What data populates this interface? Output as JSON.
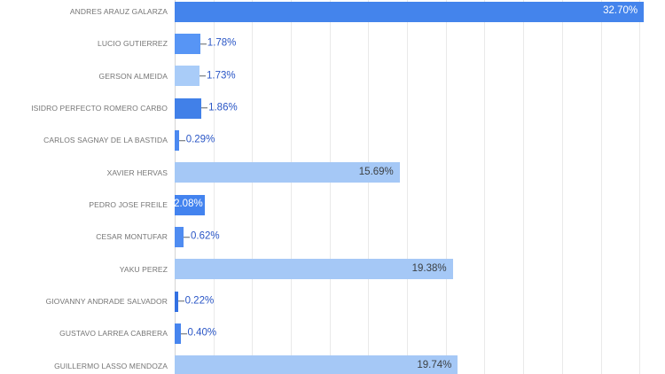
{
  "chart_data": {
    "type": "bar",
    "orientation": "horizontal",
    "title": "",
    "xlabel": "",
    "ylabel": "",
    "legend": "none",
    "grid": true,
    "categories": [
      "ANDRES ARAUZ GALARZA",
      "LUCIO GUTIERREZ",
      "GERSON ALMEIDA",
      "ISIDRO PERFECTO ROMERO CARBO",
      "CARLOS SAGNAY DE LA BASTIDA",
      "XAVIER HERVAS",
      "PEDRO JOSE FREILE",
      "CESAR MONTUFAR",
      "YAKU PEREZ",
      "GIOVANNY ANDRADE SALVADOR",
      "GUSTAVO LARREA CABRERA",
      "GUILLERMO LASSO MENDOZA"
    ],
    "values": [
      32.7,
      1.78,
      1.73,
      1.86,
      0.29,
      15.69,
      2.08,
      0.62,
      19.38,
      0.22,
      0.4,
      19.74
    ],
    "value_labels": [
      "32.70%",
      "1.78%",
      "1.73%",
      "1.86%",
      "0.29%",
      "15.69%",
      "2.08%",
      "0.62%",
      "19.38%",
      "0.22%",
      "0.40%",
      "19.74%"
    ],
    "bar_colors": [
      "#4484ec",
      "#5795f5",
      "#a9ccf8",
      "#4180e8",
      "#4b89f0",
      "#a5c8f6",
      "#4383ef",
      "#4f8cf1",
      "#a5c8f6",
      "#3371e2",
      "#4785ee",
      "#a5c8f6"
    ],
    "label_positions": [
      "inside",
      "outside",
      "outside",
      "outside",
      "outside",
      "inside",
      "inside",
      "outside",
      "inside",
      "outside",
      "outside",
      "inside"
    ],
    "inside_label_colors": [
      "#ffffff",
      null,
      null,
      null,
      null,
      "#3c4043",
      "#ffffff",
      null,
      "#3c4043",
      null,
      null,
      "#3c4043"
    ],
    "axis": {
      "min": 0,
      "max": 34.18,
      "gridline_step": 2.7
    }
  },
  "style": {
    "background": "#ffffff",
    "category_label_color": "#757575",
    "value_label_color": "#2a56c6",
    "gridline_color": "#e9e9e9",
    "baseline_color": "#d4d4d4",
    "stem_color": "#5f6368"
  }
}
